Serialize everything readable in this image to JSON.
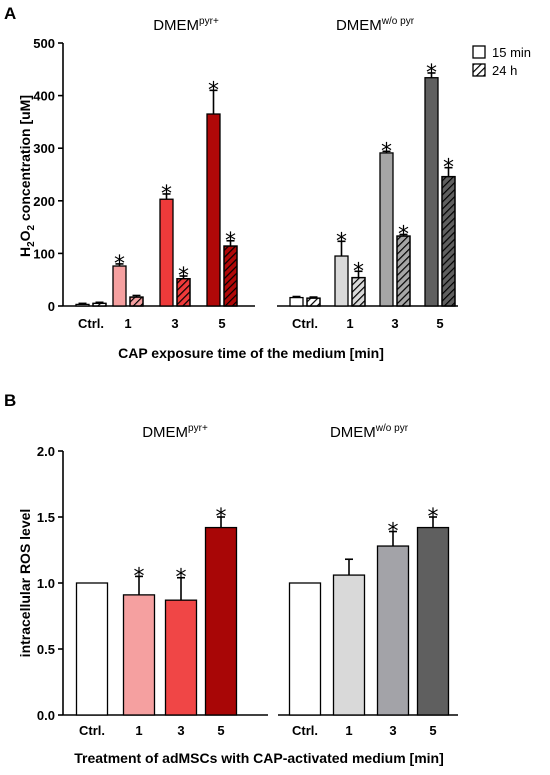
{
  "chart_data": [
    {
      "panel": "A",
      "type": "bar",
      "ylabel": "H₂O₂ concentration [uM]",
      "xlabel": "CAP exposure time of the medium [min]",
      "ylim": [
        0,
        500
      ],
      "yticks": [
        0,
        100,
        200,
        300,
        400,
        500
      ],
      "legend": {
        "position": "top-right",
        "items": [
          {
            "label": "15 min",
            "pattern": "solid"
          },
          {
            "label": "24 h",
            "pattern": "hatched"
          }
        ]
      },
      "groups": [
        {
          "title": "DMEM",
          "title_sup": "pyr+",
          "categories": [
            "Ctrl.",
            "1",
            "3",
            "5"
          ],
          "colors": [
            "#ffffff",
            "#f5a0a0",
            "#ee3a3a",
            "#b00808"
          ],
          "series": [
            {
              "name": "15 min",
              "values": [
                3,
                76,
                203,
                365
              ],
              "errors": [
                2,
                4,
                10,
                45
              ],
              "significant": [
                false,
                true,
                true,
                true
              ]
            },
            {
              "name": "24 h",
              "values": [
                5,
                17,
                52,
                114
              ],
              "errors": [
                2,
                3,
                5,
                10
              ],
              "significant": [
                false,
                false,
                true,
                true
              ]
            }
          ]
        },
        {
          "title": "DMEM",
          "title_sup": "w/o pyr",
          "categories": [
            "Ctrl.",
            "1",
            "3",
            "5"
          ],
          "colors": [
            "#ffffff",
            "#d9d9d9",
            "#a6a6a6",
            "#5f5f5f"
          ],
          "series": [
            {
              "name": "15 min",
              "values": [
                16,
                95,
                291,
                434
              ],
              "errors": [
                2,
                28,
                3,
                9
              ],
              "significant": [
                false,
                true,
                true,
                true
              ]
            },
            {
              "name": "24 h",
              "values": [
                15,
                54,
                133,
                246
              ],
              "errors": [
                2,
                12,
                3,
                17
              ],
              "significant": [
                false,
                true,
                true,
                true
              ]
            }
          ]
        }
      ],
      "significance_marker": "*"
    },
    {
      "panel": "B",
      "type": "bar",
      "ylabel": "intracellular ROS level",
      "xlabel": "Treatment of adMSCs with CAP-activated medium [min]",
      "ylim": [
        0,
        2.0
      ],
      "yticks": [
        "0.0",
        "0.5",
        "1.0",
        "1.5",
        "2.0"
      ],
      "groups": [
        {
          "title": "DMEM",
          "title_sup": "pyr+",
          "categories": [
            "Ctrl.",
            "1",
            "3",
            "5"
          ],
          "colors": [
            "#ffffff",
            "#f5a0a0",
            "#f04646",
            "#a80606"
          ],
          "values": [
            1.0,
            0.91,
            0.87,
            1.42
          ],
          "errors": [
            0,
            0.14,
            0.17,
            0.08
          ],
          "significant": [
            false,
            true,
            true,
            true
          ]
        },
        {
          "title": "DMEM",
          "title_sup": "w/o pyr",
          "categories": [
            "Ctrl.",
            "1",
            "3",
            "5"
          ],
          "colors": [
            "#ffffff",
            "#d9d9d9",
            "#a3a3a8",
            "#5f5f5f"
          ],
          "values": [
            1.0,
            1.06,
            1.28,
            1.42
          ],
          "errors": [
            0,
            0.12,
            0.11,
            0.08
          ],
          "significant": [
            false,
            false,
            true,
            true
          ]
        }
      ],
      "significance_marker": "*"
    }
  ]
}
